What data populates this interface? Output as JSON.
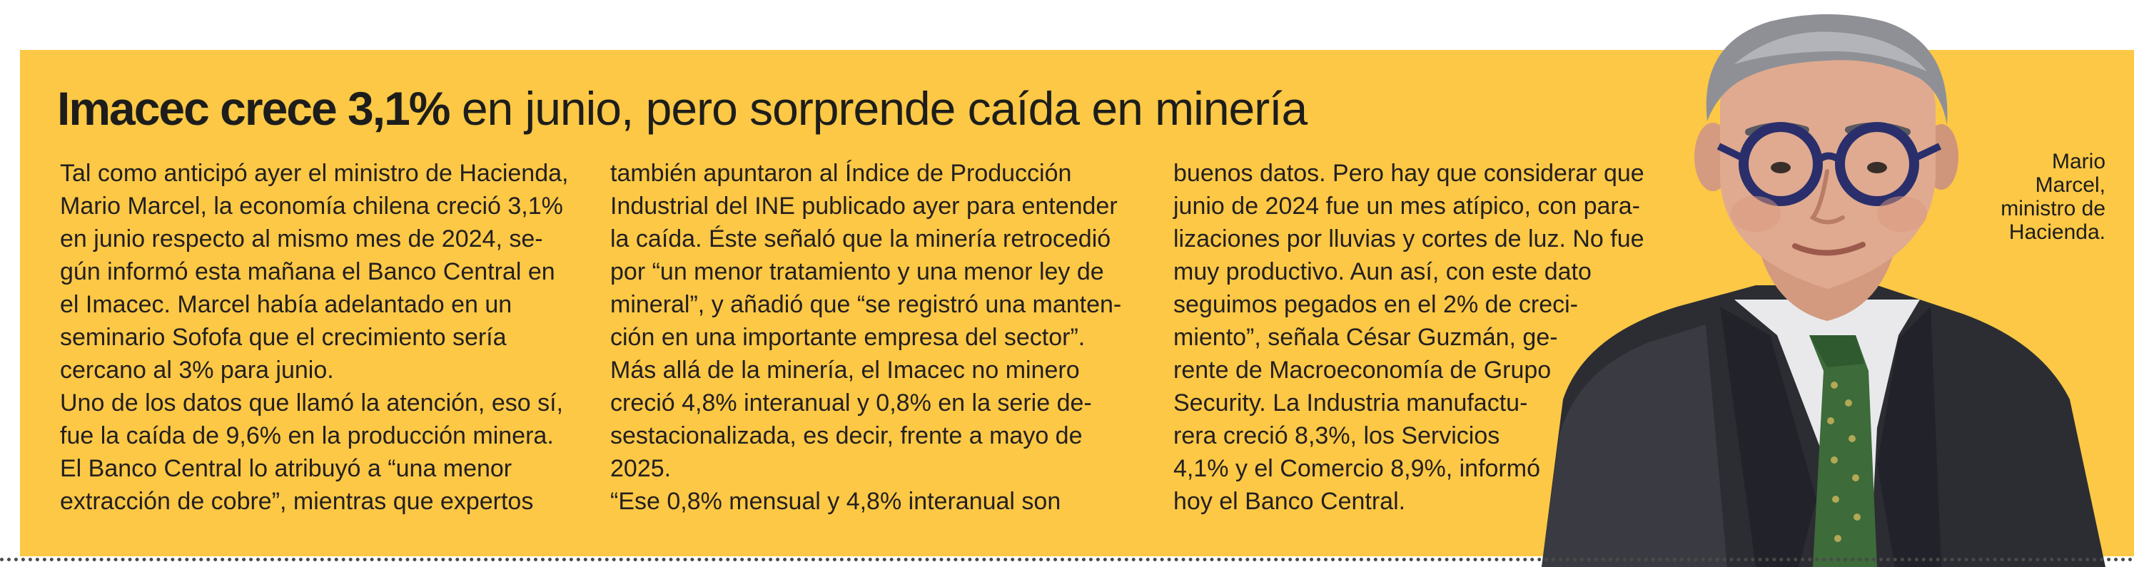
{
  "article": {
    "headline_lead": "Imacec crece 3,1%",
    "headline_rest": "en junio, pero sorprende caída en minería",
    "columns": [
      [
        "Tal como anticipó ayer el ministro de Hacienda,",
        "Mario Marcel, la economía chilena creció 3,1%",
        "en junio respecto al mismo mes de 2024, se-",
        "gún informó esta mañana el Banco Central en",
        "el Imacec. Marcel había adelantado en un",
        "seminario Sofofa que el crecimiento sería",
        "cercano al 3% para junio.",
        "Uno de los datos que llamó la atención, eso sí,",
        "fue la caída de 9,6% en la producción minera.",
        "El Banco Central lo atribuyó a “una menor",
        "extracción de cobre”, mientras que expertos"
      ],
      [
        "también apuntaron al Índice de Producción",
        "Industrial del INE publicado ayer para entender",
        "la caída. Éste señaló que la minería retrocedió",
        "por “un menor tratamiento y una menor ley de",
        "mineral”, y añadió que “se registró una manten-",
        "ción en una importante empresa del sector”.",
        "Más allá de la minería, el Imacec no minero",
        "creció 4,8% interanual y 0,8% en la serie de-",
        "sestacionalizada, es decir, frente a mayo de",
        "2025.",
        "“Ese 0,8% mensual y 4,8% interanual son"
      ],
      [
        "buenos datos. Pero hay que considerar que",
        "junio de 2024 fue un mes atípico, con para-",
        "lizaciones por lluvias y cortes de luz. No fue",
        "muy productivo. Aun así, con este dato",
        "seguimos pegados en el 2% de creci-",
        "miento”, señala César Guzmán, ge-",
        "rente de Macroeconomía de Grupo",
        "Security. La Industria manufactu-",
        "rera creció 8,3%, los Servicios",
        "4,1% y el Comercio 8,9%, informó",
        "hoy el Banco Central."
      ]
    ]
  },
  "photo": {
    "caption_lines": [
      "Mario",
      "Marcel,",
      "ministro de",
      "Hacienda."
    ],
    "icon": "portrait-photo"
  },
  "colors": {
    "panel": "#fcc845",
    "text": "#231f20"
  }
}
